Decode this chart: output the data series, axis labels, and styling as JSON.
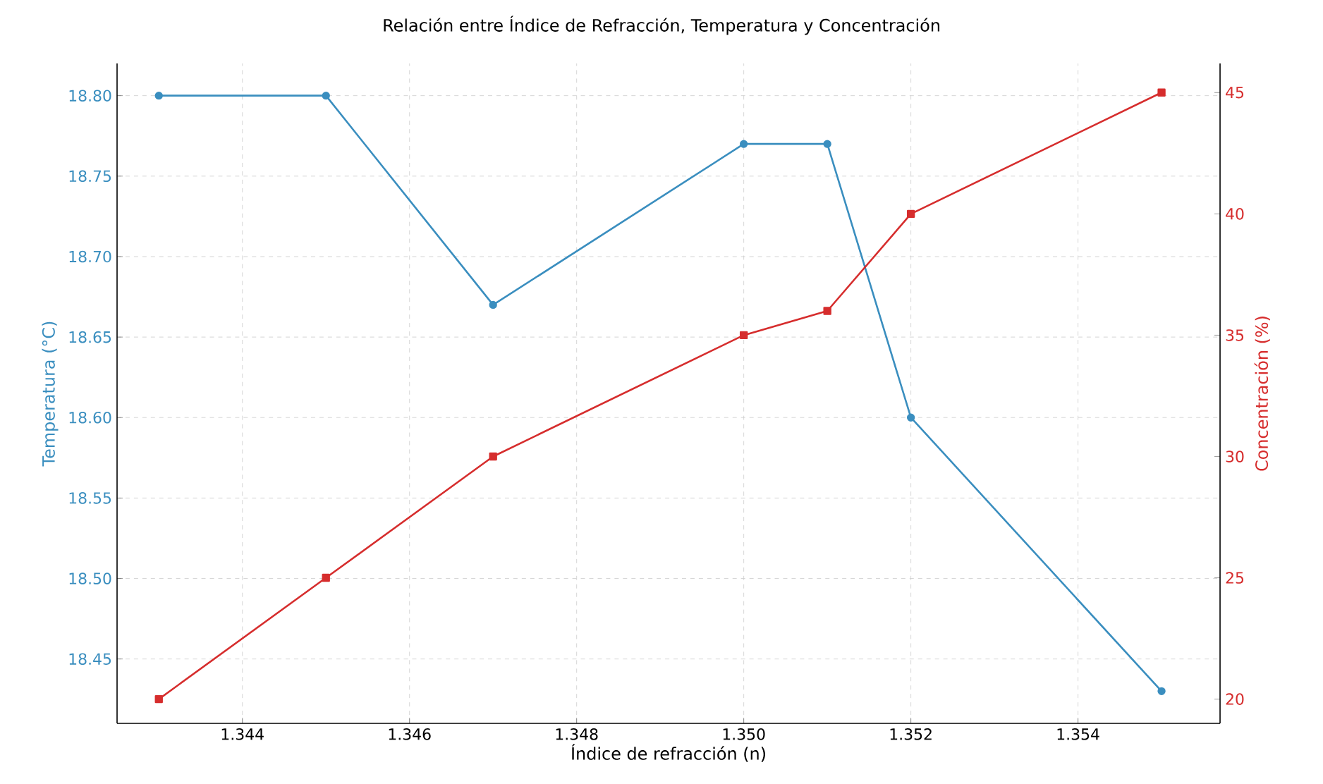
{
  "chart_data": {
    "type": "line",
    "title": "Relación entre Índice de Refracción, Temperatura y Concentración",
    "xlabel": "Índice de refracción (n)",
    "ylabel": "Temperatura (°C)",
    "y2label": "Concentración (%)",
    "x": [
      1.343,
      1.345,
      1.347,
      1.35,
      1.351,
      1.352,
      1.355
    ],
    "series": [
      {
        "color": "#3a8ebf",
        "marker": "circle",
        "values": [
          18.8,
          18.8,
          18.67,
          18.77,
          18.77,
          18.6,
          18.43
        ]
      },
      {
        "color": "#d62d2d",
        "marker": "square",
        "axis": "y2",
        "values": [
          20,
          25,
          30,
          35,
          36,
          40,
          45
        ]
      }
    ],
    "xlim": [
      1.3425,
      1.3557
    ],
    "xticks": [
      1.344,
      1.346,
      1.348,
      {
        "value": 1.35,
        "label": "1.350"
      },
      1.352,
      1.354
    ],
    "ylim": [
      18.41,
      18.82
    ],
    "yticks": [
      18.45,
      {
        "value": 18.5,
        "label": "18.50"
      },
      18.55,
      {
        "value": 18.6,
        "label": "18.60"
      },
      18.65,
      {
        "value": 18.7,
        "label": "18.70"
      },
      18.75,
      {
        "value": 18.8,
        "label": "18.80"
      }
    ],
    "y2lim": [
      19,
      46.2
    ],
    "y2ticks": [
      20,
      25,
      30,
      35,
      40,
      45
    ],
    "grid": true,
    "line_style": "solid"
  }
}
